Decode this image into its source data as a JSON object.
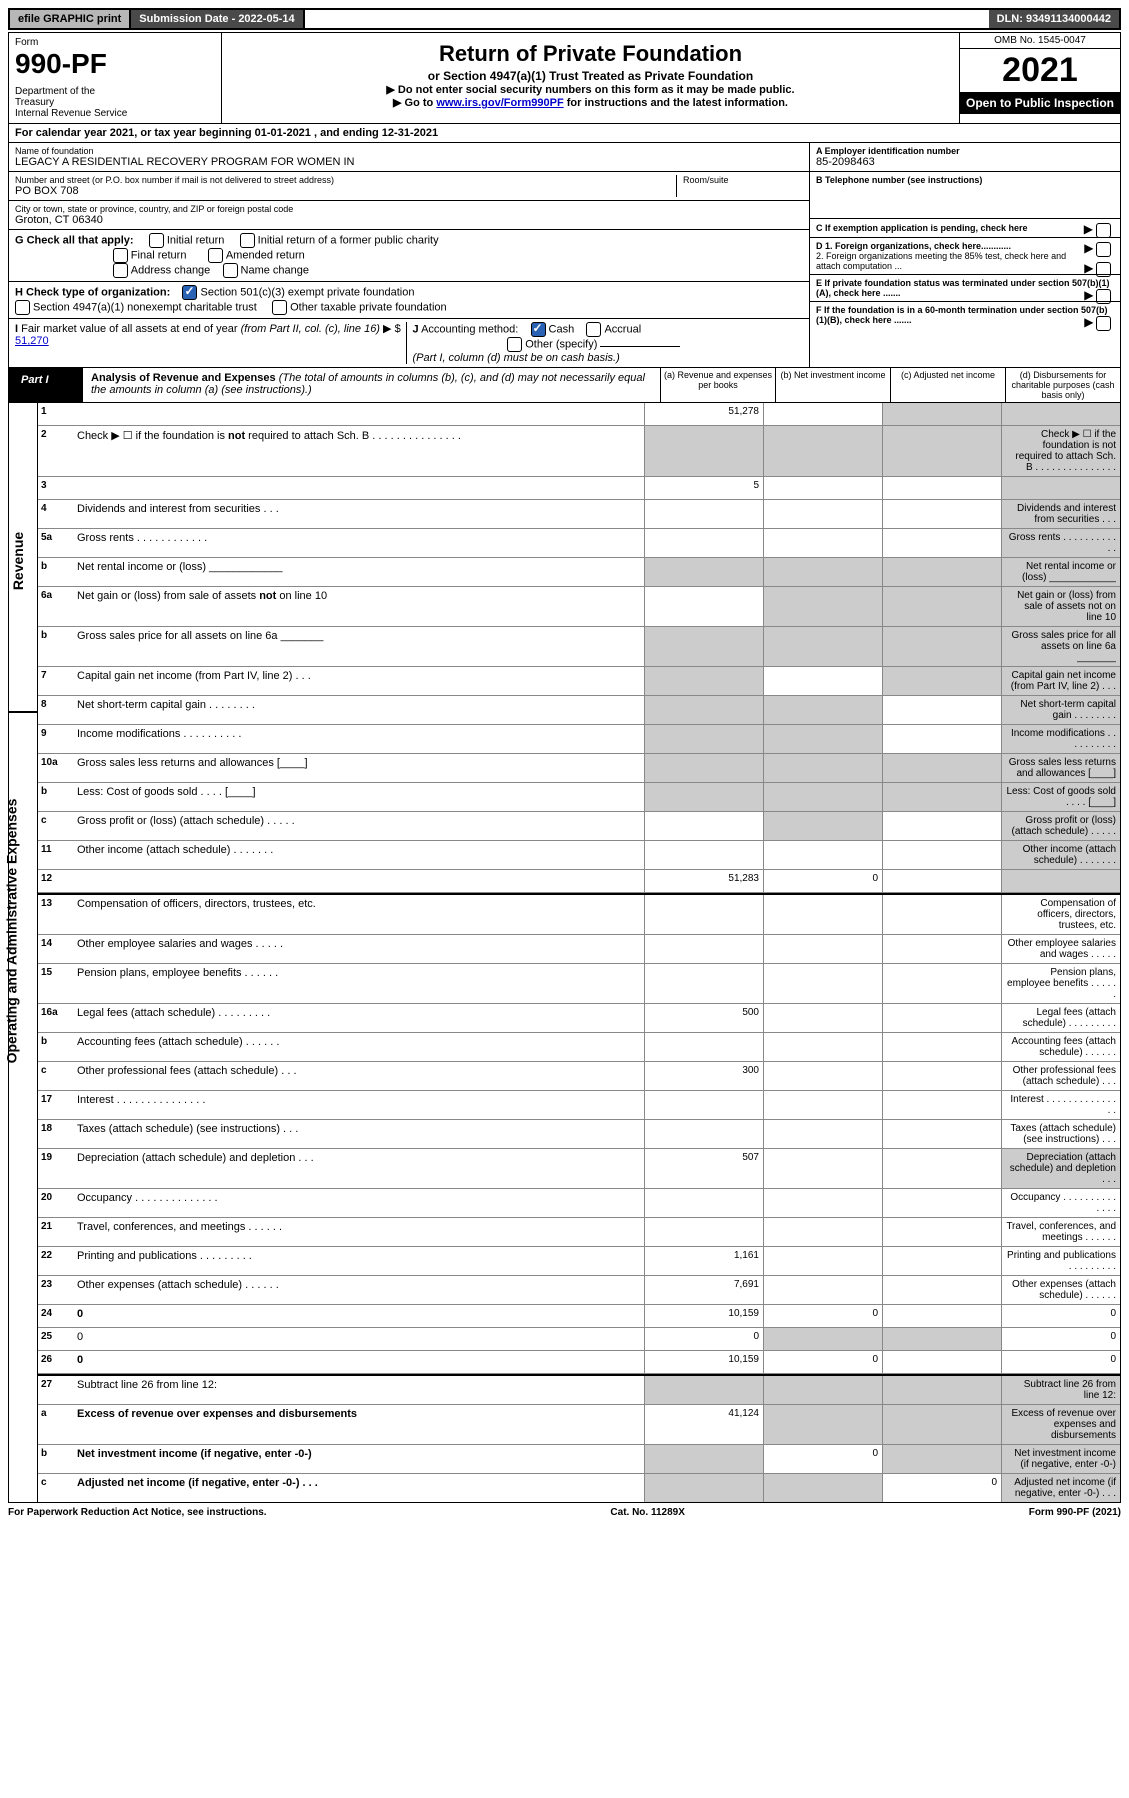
{
  "topbar": {
    "efile": "efile GRAPHIC print",
    "submission_label": "Submission Date - 2022-05-14",
    "dln": "DLN: 93491134000442"
  },
  "header": {
    "form_label": "Form",
    "form_number": "990-PF",
    "dept": "Department of the Treasury\nInternal Revenue Service",
    "title": "Return of Private Foundation",
    "subtitle": "or Section 4947(a)(1) Trust Treated as Private Foundation",
    "note1": "▶ Do not enter social security numbers on this form as it may be made public.",
    "note2_pre": "▶ Go to ",
    "note2_link": "www.irs.gov/Form990PF",
    "note2_post": " for instructions and the latest information.",
    "omb": "OMB No. 1545-0047",
    "year": "2021",
    "open": "Open to Public Inspection"
  },
  "calendar": "For calendar year 2021, or tax year beginning 01-01-2021    , and ending 12-31-2021",
  "foundation": {
    "name_label": "Name of foundation",
    "name": "LEGACY A RESIDENTIAL RECOVERY PROGRAM FOR WOMEN IN",
    "addr_label": "Number and street (or P.O. box number if mail is not delivered to street address)",
    "addr": "PO BOX 708",
    "room_label": "Room/suite",
    "city_label": "City or town, state or province, country, and ZIP or foreign postal code",
    "city": "Groton, CT  06340"
  },
  "ein_section": {
    "a_label": "A Employer identification number",
    "a_value": "85-2098463",
    "b_label": "B Telephone number (see instructions)",
    "c_label": "C If exemption application is pending, check here",
    "d1": "D 1. Foreign organizations, check here............",
    "d2": "2. Foreign organizations meeting the 85% test, check here and attach computation ...",
    "e": "E  If private foundation status was terminated under section 507(b)(1)(A), check here .......",
    "f": "F  If the foundation is in a 60-month termination under section 507(b)(1)(B), check here .......",
    "arrow": "▶"
  },
  "check_g": {
    "label": "G Check all that apply:",
    "initial": "Initial return",
    "initial_former": "Initial return of a former public charity",
    "final": "Final return",
    "amended": "Amended return",
    "addr_change": "Address change",
    "name_change": "Name change"
  },
  "check_h": {
    "label": "H Check type of organization:",
    "sec501": "Section 501(c)(3) exempt private foundation",
    "sec4947": "Section 4947(a)(1) nonexempt charitable trust",
    "other_taxable": "Other taxable private foundation"
  },
  "box_i": {
    "label": "I Fair market value of all assets at end of year (from Part II, col. (c), line 16)",
    "value_label": "▶ $",
    "value": "51,270"
  },
  "box_j": {
    "label": "J Accounting method:",
    "cash": "Cash",
    "accrual": "Accrual",
    "other": "Other (specify)",
    "note": "(Part I, column (d) must be on cash basis.)"
  },
  "part1": {
    "label": "Part I",
    "title": "Analysis of Revenue and Expenses",
    "title_note": "(The total of amounts in columns (b), (c), and (d) may not necessarily equal the amounts in column (a) (see instructions).)",
    "col_a": "(a)   Revenue and expenses per books",
    "col_b": "(b)   Net investment income",
    "col_c": "(c)   Adjusted net income",
    "col_d": "(d)   Disbursements for charitable purposes (cash basis only)"
  },
  "side_labels": {
    "revenue": "Revenue",
    "expenses": "Operating and Administrative Expenses"
  },
  "lines": [
    {
      "n": "1",
      "d": "",
      "a": "51,278",
      "b": "",
      "c": "",
      "d_gray": true,
      "c_gray": true
    },
    {
      "n": "2",
      "d": "Check ▶ ☐ if the foundation is not required to attach Sch. B   .  .  .  .  .  .  .  .  .  .  .  .  .  .  .",
      "all_gray": true
    },
    {
      "n": "3",
      "d": "",
      "a": "5",
      "b": "",
      "c": "",
      "d_gray": true
    },
    {
      "n": "4",
      "d": "Dividends and interest from securities   .  .  .",
      "d_gray": true
    },
    {
      "n": "5a",
      "d": "Gross rents   .  .  .  .  .  .  .  .  .  .  .  .",
      "d_gray": true
    },
    {
      "n": "b",
      "d": "Net rental income or (loss)  ____________",
      "all_gray": true
    },
    {
      "n": "6a",
      "d": "Net gain or (loss) from sale of assets not on line 10",
      "b_gray": true,
      "c_gray": true,
      "d_gray": true
    },
    {
      "n": "b",
      "d": "Gross sales price for all assets on line 6a _______",
      "all_gray": true
    },
    {
      "n": "7",
      "d": "Capital gain net income (from Part IV, line 2)   .  .  .",
      "a_gray": true,
      "c_gray": true,
      "d_gray": true
    },
    {
      "n": "8",
      "d": "Net short-term capital gain  .  .  .  .  .  .  .  .",
      "a_gray": true,
      "b_gray": true,
      "d_gray": true
    },
    {
      "n": "9",
      "d": "Income modifications .  .  .  .  .  .  .  .  .  .",
      "a_gray": true,
      "b_gray": true,
      "d_gray": true
    },
    {
      "n": "10a",
      "d": "Gross sales less returns and allowances  [____]",
      "all_gray": true
    },
    {
      "n": "b",
      "d": "Less: Cost of goods sold   .  .  .  .   [____]",
      "all_gray": true
    },
    {
      "n": "c",
      "d": "Gross profit or (loss) (attach schedule)   .  .  .  .  .",
      "b_gray": true,
      "d_gray": true
    },
    {
      "n": "11",
      "d": "Other income (attach schedule)   .  .  .  .  .  .  .",
      "d_gray": true
    },
    {
      "n": "12",
      "d": "",
      "bold": true,
      "a": "51,283",
      "b": "0",
      "c": "",
      "d_gray": true
    },
    {
      "n": "13",
      "d": "Compensation of officers, directors, trustees, etc.",
      "section": true
    },
    {
      "n": "14",
      "d": "Other employee salaries and wages   .  .  .  .  ."
    },
    {
      "n": "15",
      "d": "Pension plans, employee benefits  .  .  .  .  .  ."
    },
    {
      "n": "16a",
      "d": "Legal fees (attach schedule) .  .  .  .  .  .  .  .  .",
      "a": "500"
    },
    {
      "n": "b",
      "d": "Accounting fees (attach schedule)  .  .  .  .  .  ."
    },
    {
      "n": "c",
      "d": "Other professional fees (attach schedule)   .  .  .",
      "a": "300"
    },
    {
      "n": "17",
      "d": "Interest .  .  .  .  .  .  .  .  .  .  .  .  .  .  ."
    },
    {
      "n": "18",
      "d": "Taxes (attach schedule) (see instructions)   .  .  ."
    },
    {
      "n": "19",
      "d": "Depreciation (attach schedule) and depletion   .  .  .",
      "a": "507",
      "d_gray": true
    },
    {
      "n": "20",
      "d": "Occupancy .  .  .  .  .  .  .  .  .  .  .  .  .  ."
    },
    {
      "n": "21",
      "d": "Travel, conferences, and meetings .  .  .  .  .  ."
    },
    {
      "n": "22",
      "d": "Printing and publications .  .  .  .  .  .  .  .  .",
      "a": "1,161"
    },
    {
      "n": "23",
      "d": "Other expenses (attach schedule) .  .  .  .  .  .",
      "a": "7,691"
    },
    {
      "n": "24",
      "d": "0",
      "bold": true,
      "a": "10,159",
      "b": "0",
      "c": ""
    },
    {
      "n": "25",
      "d": "0",
      "a": "0",
      "b_gray": true,
      "c_gray": true
    },
    {
      "n": "26",
      "d": "0",
      "bold": true,
      "a": "10,159",
      "b": "0",
      "c": ""
    },
    {
      "n": "27",
      "d": "Subtract line 26 from line 12:",
      "all_gray": true,
      "section": true
    },
    {
      "n": "a",
      "d": "Excess of revenue over expenses and disbursements",
      "bold": true,
      "a": "41,124",
      "b_gray": true,
      "c_gray": true,
      "d_gray": true
    },
    {
      "n": "b",
      "d": "Net investment income (if negative, enter -0-)",
      "bold": true,
      "a_gray": true,
      "b": "0",
      "c_gray": true,
      "d_gray": true
    },
    {
      "n": "c",
      "d": "Adjusted net income (if negative, enter -0-)   .  .  .",
      "bold": true,
      "a_gray": true,
      "b_gray": true,
      "c": "0",
      "d_gray": true
    }
  ],
  "footer": {
    "left": "For Paperwork Reduction Act Notice, see instructions.",
    "center": "Cat. No. 11289X",
    "right": "Form 990-PF (2021)"
  }
}
